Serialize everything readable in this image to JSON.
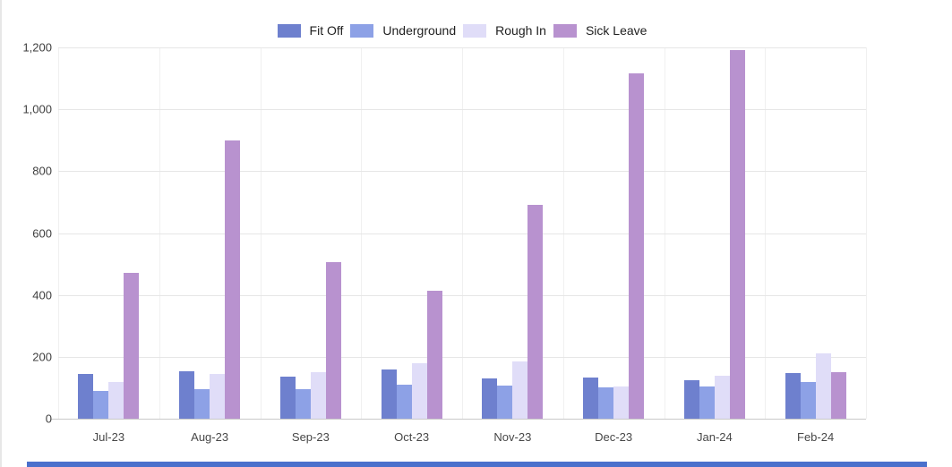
{
  "page": {
    "background": "#ffffff",
    "left_border_color": "#e7e7e7",
    "bottom_bar_color": "#4a70cc"
  },
  "chart_data": {
    "type": "bar",
    "title": "",
    "xlabel": "",
    "ylabel": "",
    "categories": [
      "Jul-23",
      "Aug-23",
      "Sep-23",
      "Oct-23",
      "Nov-23",
      "Dec-23",
      "Jan-24",
      "Feb-24"
    ],
    "series": [
      {
        "name": "Fit Off",
        "color": "#6e80ce",
        "values": [
          145,
          152,
          135,
          160,
          130,
          132,
          125,
          148
        ]
      },
      {
        "name": "Underground",
        "color": "#8da1e6",
        "values": [
          90,
          95,
          95,
          110,
          107,
          100,
          105,
          120
        ]
      },
      {
        "name": "Rough In",
        "color": "#e0ddf8",
        "values": [
          118,
          145,
          150,
          178,
          185,
          105,
          140,
          210
        ]
      },
      {
        "name": "Sick Leave",
        "color": "#b892cf",
        "values": [
          470,
          900,
          505,
          413,
          690,
          1115,
          1190,
          150
        ]
      }
    ],
    "ylim": [
      0,
      1200
    ],
    "yticks": [
      0,
      200,
      400,
      600,
      800,
      1000,
      1200
    ],
    "ytick_labels": [
      "0",
      "200",
      "400",
      "600",
      "800",
      "1,000",
      "1,200"
    ],
    "grid": true,
    "legend_position": "top",
    "gridline_color": "#e6e6e6",
    "baseline_color": "#c9c9c9"
  }
}
